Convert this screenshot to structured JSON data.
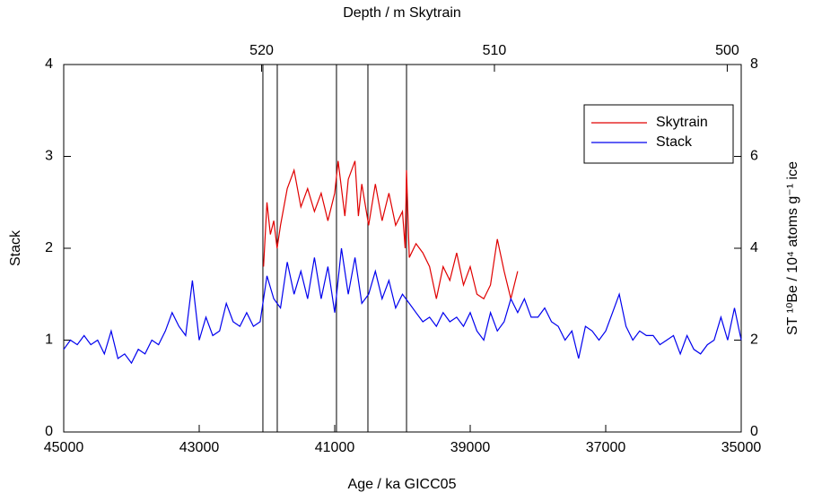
{
  "chart_data": {
    "type": "line",
    "xlabel": "Age / ka  GICC05",
    "x2label": "Depth / m Skytrain",
    "ylabel": "Stack",
    "y2label": "ST ¹⁰Be / 10⁴ atoms g⁻¹ ice",
    "xlim": [
      45000,
      35000
    ],
    "xticks": [
      45000,
      43000,
      41000,
      39000,
      37000,
      35000
    ],
    "x2lim": [
      528.5,
      499.4
    ],
    "x2ticks": [
      520,
      510,
      500
    ],
    "ylim": [
      0,
      4
    ],
    "yticks": [
      0,
      1,
      2,
      3,
      4
    ],
    "y2lim": [
      0,
      8
    ],
    "y2ticks": [
      0,
      2,
      4,
      6,
      8
    ],
    "legend": "upper right",
    "vlines": [
      42060,
      41848,
      40974,
      40510,
      39940
    ],
    "series": [
      {
        "name": "Skytrain",
        "color": "#e00000",
        "axis": "y2",
        "x": [
          42050,
          42000,
          41950,
          41900,
          41850,
          41800,
          41700,
          41600,
          41500,
          41400,
          41300,
          41200,
          41100,
          41000,
          40950,
          40850,
          40800,
          40700,
          40650,
          40600,
          40500,
          40400,
          40300,
          40200,
          40100,
          40000,
          39960,
          39940,
          39900,
          39800,
          39700,
          39600,
          39500,
          39400,
          39300,
          39200,
          39100,
          39000,
          38900,
          38800,
          38700,
          38600,
          38500,
          38400,
          38300
        ],
        "values": [
          3.6,
          5.0,
          4.3,
          4.6,
          4.0,
          4.5,
          5.3,
          5.7,
          4.9,
          5.3,
          4.8,
          5.2,
          4.6,
          5.2,
          5.9,
          4.7,
          5.5,
          5.9,
          4.7,
          5.4,
          4.5,
          5.4,
          4.6,
          5.2,
          4.5,
          4.8,
          4.0,
          5.7,
          3.8,
          4.1,
          3.9,
          3.6,
          2.9,
          3.6,
          3.3,
          3.9,
          3.2,
          3.6,
          3.0,
          2.9,
          3.2,
          4.2,
          3.5,
          2.9,
          3.5
        ]
      },
      {
        "name": "Stack",
        "color": "#0000ee",
        "x": [
          45000,
          44900,
          44800,
          44700,
          44600,
          44500,
          44400,
          44300,
          44200,
          44100,
          44000,
          43900,
          43800,
          43700,
          43600,
          43500,
          43400,
          43300,
          43200,
          43100,
          43000,
          42900,
          42800,
          42700,
          42600,
          42500,
          42400,
          42300,
          42200,
          42100,
          42000,
          41900,
          41800,
          41700,
          41600,
          41500,
          41400,
          41300,
          41200,
          41100,
          41000,
          40900,
          40800,
          40700,
          40600,
          40500,
          40400,
          40300,
          40200,
          40100,
          40000,
          39900,
          39800,
          39700,
          39600,
          39500,
          39400,
          39300,
          39200,
          39100,
          39000,
          38900,
          38800,
          38700,
          38600,
          38500,
          38400,
          38300,
          38200,
          38100,
          38000,
          37900,
          37800,
          37700,
          37600,
          37500,
          37400,
          37300,
          37200,
          37100,
          37000,
          36900,
          36800,
          36700,
          36600,
          36500,
          36400,
          36300,
          36200,
          36100,
          36000,
          35900,
          35800,
          35700,
          35600,
          35500,
          35400,
          35300,
          35200,
          35100,
          35000
        ],
        "values": [
          0.9,
          1.0,
          0.95,
          1.05,
          0.95,
          1.0,
          0.85,
          1.1,
          0.8,
          0.85,
          0.75,
          0.9,
          0.85,
          1.0,
          0.95,
          1.1,
          1.3,
          1.15,
          1.05,
          1.65,
          1.0,
          1.25,
          1.05,
          1.1,
          1.4,
          1.2,
          1.15,
          1.3,
          1.15,
          1.2,
          1.7,
          1.45,
          1.35,
          1.85,
          1.5,
          1.75,
          1.45,
          1.9,
          1.45,
          1.8,
          1.3,
          2.0,
          1.5,
          1.9,
          1.4,
          1.5,
          1.75,
          1.45,
          1.65,
          1.35,
          1.5,
          1.4,
          1.3,
          1.2,
          1.25,
          1.15,
          1.3,
          1.2,
          1.25,
          1.15,
          1.3,
          1.1,
          1.0,
          1.3,
          1.1,
          1.2,
          1.45,
          1.3,
          1.45,
          1.25,
          1.25,
          1.35,
          1.2,
          1.15,
          1.0,
          1.1,
          0.8,
          1.15,
          1.1,
          1.0,
          1.1,
          1.3,
          1.5,
          1.15,
          1.0,
          1.1,
          1.05,
          1.05,
          0.95,
          1.0,
          1.05,
          0.85,
          1.05,
          0.9,
          0.85,
          0.95,
          1.0,
          1.25,
          1.0,
          1.35,
          1.0
        ]
      }
    ]
  }
}
